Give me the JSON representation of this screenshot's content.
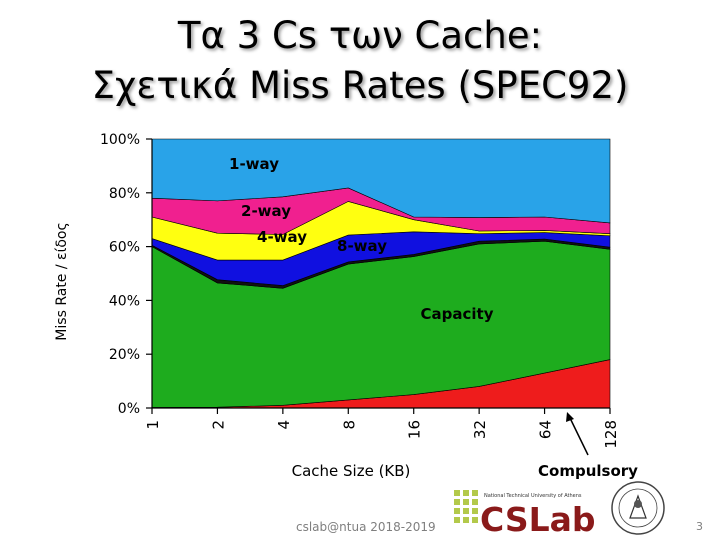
{
  "slide": {
    "title_line1": "Τα 3 Cs των Cache:",
    "title_line2": "Σχετικά Miss Rates (SPEC92)",
    "footer": "cslab@ntua 2018-2019",
    "page_number": "3",
    "logo_text": "CSLab",
    "logo_caption": "National Technical University of Athens"
  },
  "chart_data": {
    "type": "area",
    "stacked": true,
    "percent_axis": true,
    "xlabel": "Cache Size (KB)",
    "ylabel": "Miss Rate / είδος",
    "x": [
      "1",
      "2",
      "4",
      "8",
      "16",
      "32",
      "64",
      "128"
    ],
    "ylim": [
      0,
      100
    ],
    "yticks": [
      "0%",
      "20%",
      "40%",
      "60%",
      "80%",
      "100%"
    ],
    "series": [
      {
        "name": "Compulsory",
        "color": "#ee1c1c",
        "values": [
          0.2,
          0.3,
          1.0,
          3.0,
          5.0,
          8.0,
          13.0,
          18.0
        ]
      },
      {
        "name": "Capacity",
        "color": "#1eac1e",
        "values": [
          59.8,
          46.2,
          43.5,
          50.5,
          51.3,
          53.0,
          49.0,
          41.0
        ]
      },
      {
        "name": "",
        "color": "#111111",
        "values": [
          0.5,
          1.2,
          1.0,
          0.8,
          0.8,
          1.0,
          0.8,
          0.8
        ]
      },
      {
        "name": "8-way",
        "color": "#1010e0",
        "values": [
          2.5,
          7.3,
          9.5,
          10.0,
          8.4,
          2.8,
          2.4,
          4.2
        ]
      },
      {
        "name": "4-way",
        "color": "#ffff10",
        "values": [
          8.0,
          10.0,
          9.5,
          12.5,
          4.5,
          1.0,
          0.8,
          0.8
        ]
      },
      {
        "name": "2-way",
        "color": "#f0208f",
        "values": [
          7.0,
          12.0,
          14.0,
          5.0,
          1.0,
          5.0,
          5.0,
          4.0
        ]
      },
      {
        "name": "1-way",
        "color": "#29a3e8",
        "values": [
          22.0,
          23.0,
          21.5,
          18.2,
          29.0,
          29.2,
          29.0,
          31.2
        ]
      }
    ],
    "annotations": [
      "1-way",
      "2-way",
      "4-way",
      "8-way",
      "Capacity",
      "Compulsory"
    ]
  }
}
